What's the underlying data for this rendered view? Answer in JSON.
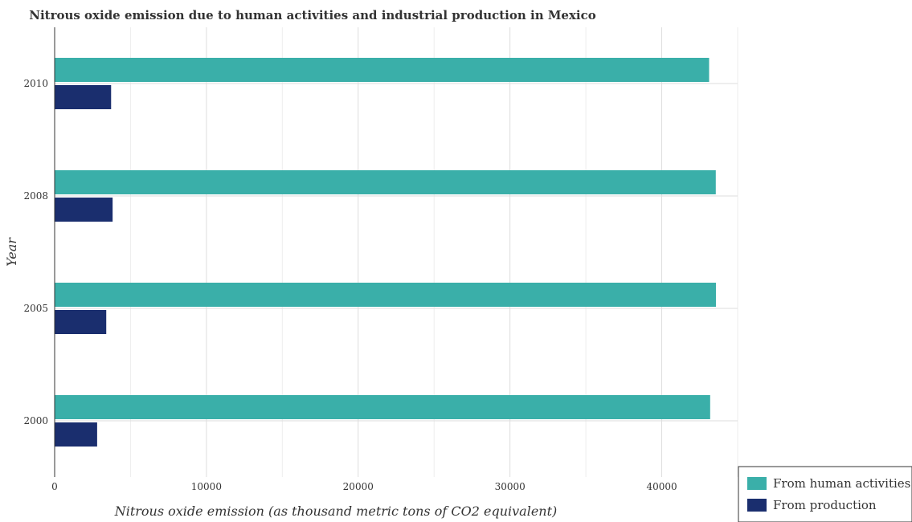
{
  "chart_data": {
    "type": "bar",
    "orientation": "horizontal",
    "title": "Nitrous oxide emission due to human activities and industrial production in Mexico",
    "xlabel": "Nitrous oxide emission (as thousand metric tons of CO2 equivalent)",
    "ylabel": "Year",
    "categories": [
      "2000",
      "2005",
      "2008",
      "2010"
    ],
    "series": [
      {
        "name": "From human activities",
        "color": "#3aafa9",
        "values": [
          43190,
          43570,
          43560,
          43120
        ]
      },
      {
        "name": "From production",
        "color": "#1a2e6e",
        "values": [
          2800,
          3400,
          3820,
          3720
        ]
      }
    ],
    "xlim": [
      0,
      45000
    ],
    "xticks": [
      0,
      10000,
      20000,
      30000,
      40000
    ],
    "grid": true,
    "legend_position": "bottom-right"
  }
}
